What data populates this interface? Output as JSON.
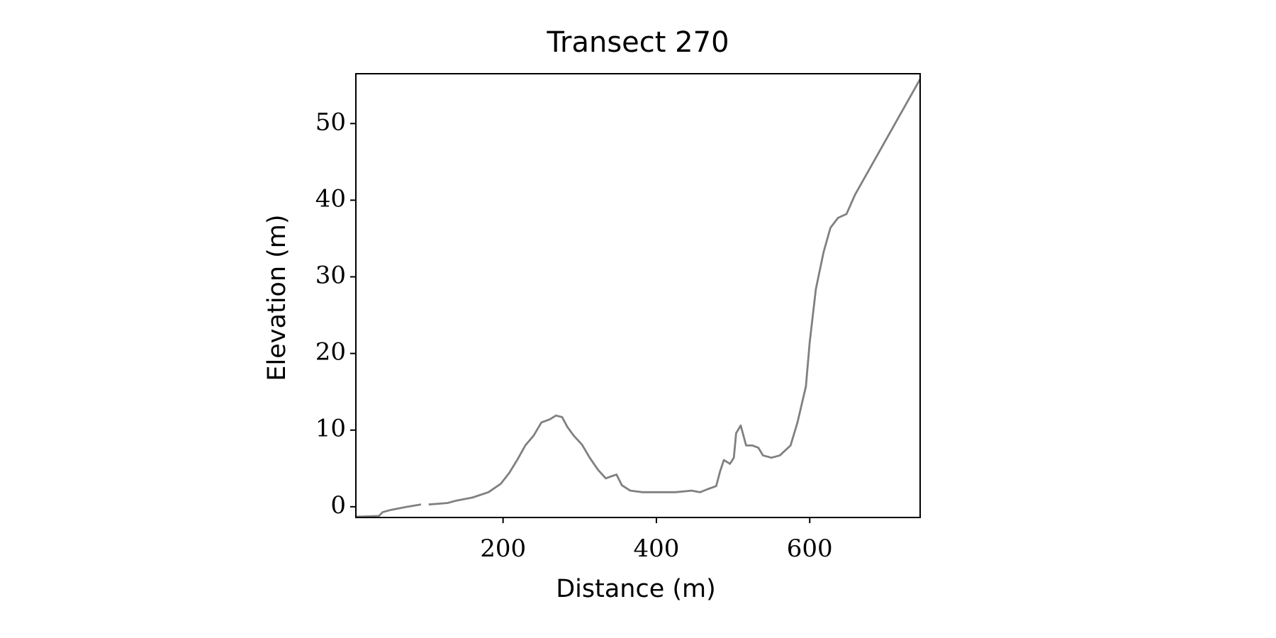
{
  "chart_data": {
    "type": "line",
    "title": "Transect 270",
    "xlabel": "Distance (m)",
    "ylabel": "Elevation (m)",
    "x": [
      8,
      38,
      43,
      54,
      75,
      93,
      98,
      103,
      117,
      128,
      139,
      160,
      181,
      197,
      208,
      219,
      229,
      240,
      250,
      261,
      269,
      277,
      284,
      292,
      303,
      313,
      324,
      334,
      342,
      348,
      355,
      366,
      382,
      404,
      425,
      446,
      457,
      467,
      478,
      483,
      488,
      496,
      501,
      504,
      510,
      517,
      525,
      533,
      539,
      550,
      561,
      575,
      584,
      595,
      600,
      608,
      618,
      627,
      637,
      648,
      659,
      744
    ],
    "series": [
      {
        "name": "Elevation",
        "color": "#808080",
        "values": [
          -1.3,
          -1.2,
          -0.7,
          -0.4,
          0,
          0.3,
          null,
          0.3,
          0.4,
          0.5,
          0.8,
          1.2,
          1.9,
          3,
          4.4,
          6.2,
          8,
          9.3,
          11,
          11.4,
          11.9,
          11.7,
          10.4,
          9.3,
          8.1,
          6.4,
          4.8,
          3.7,
          4,
          4.2,
          2.8,
          2.1,
          1.9,
          1.9,
          1.9,
          2.1,
          1.9,
          2.3,
          2.7,
          4.6,
          6.1,
          5.6,
          6.4,
          9.6,
          10.6,
          8,
          8,
          7.7,
          6.7,
          6.4,
          6.7,
          8,
          11,
          15.7,
          21.5,
          28.4,
          33.2,
          36.4,
          37.7,
          38.2,
          40.7,
          55.8
        ]
      }
    ],
    "xlim": [
      8,
      744
    ],
    "ylim": [
      -1.4,
      56.5
    ],
    "xticks": [
      200,
      400,
      600
    ],
    "yticks": [
      0,
      10,
      20,
      30,
      40,
      50
    ]
  }
}
